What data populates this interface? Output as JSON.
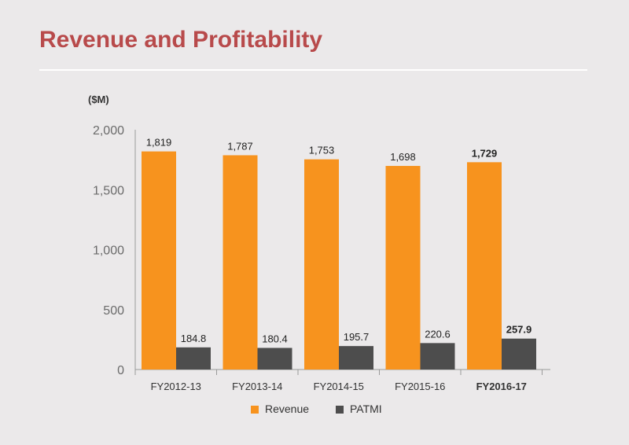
{
  "header": {
    "title": "Revenue and Profitability"
  },
  "chart_data": {
    "type": "bar",
    "unit_label": "($M)",
    "categories": [
      "FY2012-13",
      "FY2013-14",
      "FY2014-15",
      "FY2015-16",
      "FY2016-17"
    ],
    "highlight_category": "FY2016-17",
    "series": [
      {
        "name": "Revenue",
        "color": "#f7931e",
        "values": [
          1819,
          1787,
          1753,
          1698,
          1729
        ],
        "labels": [
          "1,819",
          "1,787",
          "1,753",
          "1,698",
          "1,729"
        ]
      },
      {
        "name": "PATMI",
        "color": "#4d4d4d",
        "values": [
          184.8,
          180.4,
          195.7,
          220.6,
          257.9
        ],
        "labels": [
          "184.8",
          "180.4",
          "195.7",
          "220.6",
          "257.9"
        ]
      }
    ],
    "ylim": [
      0,
      2000
    ],
    "yticks": [
      0,
      500,
      1000,
      1500,
      2000
    ],
    "ytick_labels": [
      "0",
      "500",
      "1,000",
      "1,500",
      "2,000"
    ],
    "legend_position": "bottom",
    "grid": false
  }
}
